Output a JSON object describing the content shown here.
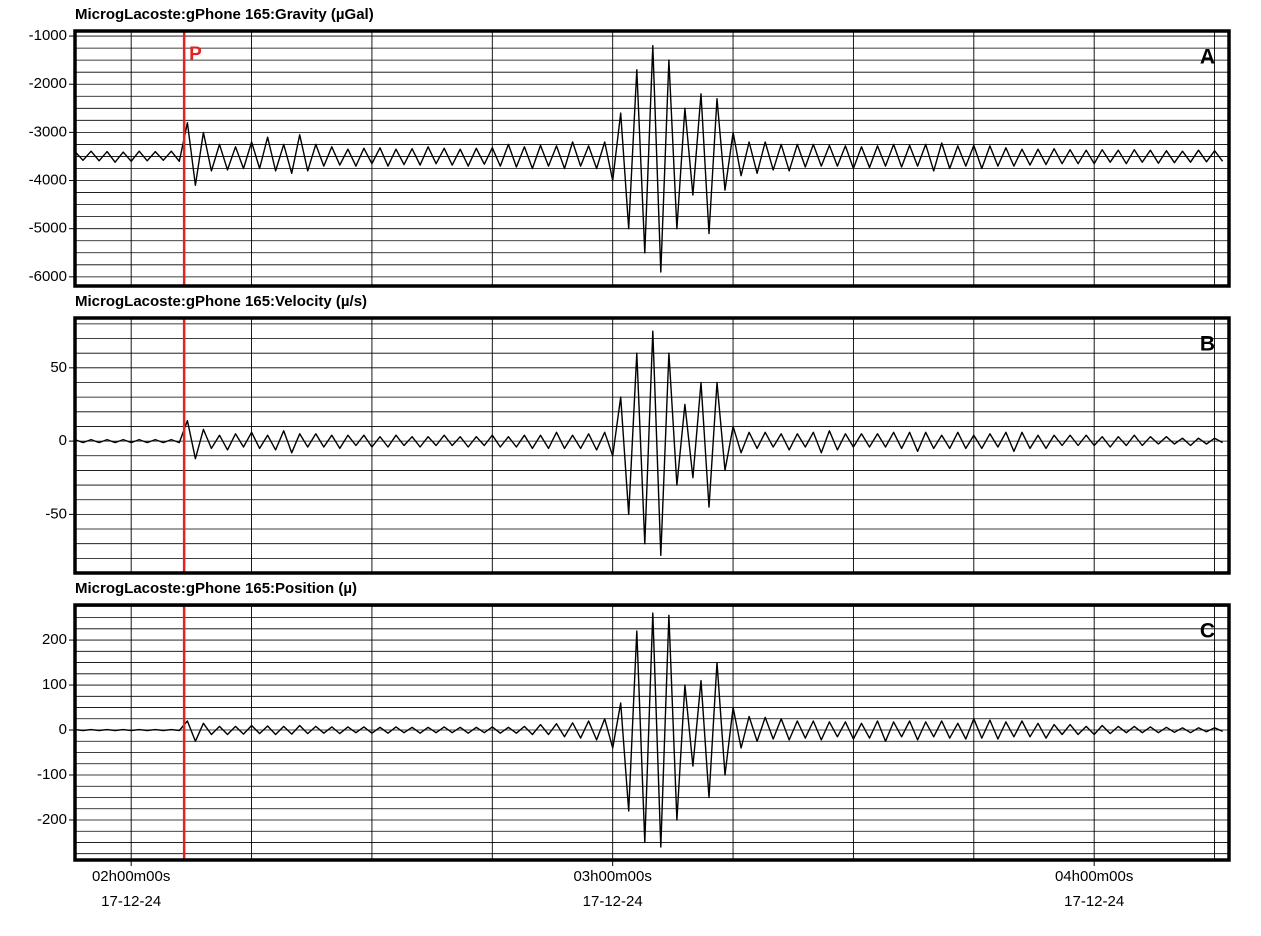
{
  "chart_data": [
    {
      "type": "line",
      "title": "MicrogLacoste:gPhone 165:Gravity (µGal)",
      "panel_label": "A",
      "color": "#000000",
      "grid": true,
      "xlim": [
        -7,
        136.8
      ],
      "xgrid_step": 15,
      "ylim": [
        -6190,
        -895
      ],
      "yticks": [
        -1000,
        -2000,
        -3000,
        -4000,
        -5000,
        -6000
      ],
      "yminor_step": 250,
      "markers": [
        {
          "x": 6.6,
          "label": "P",
          "color": "#e32222"
        }
      ],
      "x": [
        -7,
        -6,
        -5,
        -4,
        -3,
        -2,
        -1,
        0,
        1,
        2,
        3,
        4,
        5,
        6,
        7,
        8,
        9,
        10,
        11,
        12,
        13,
        14,
        15,
        16,
        17,
        18,
        19,
        20,
        21,
        22,
        23,
        24,
        25,
        26,
        27,
        28,
        29,
        30,
        31,
        32,
        33,
        34,
        35,
        36,
        37,
        38,
        39,
        40,
        41,
        42,
        43,
        44,
        45,
        46,
        47,
        48,
        49,
        50,
        51,
        52,
        53,
        54,
        55,
        56,
        57,
        58,
        59,
        60,
        61,
        62,
        63,
        64,
        65,
        66,
        67,
        68,
        69,
        70,
        71,
        72,
        73,
        74,
        75,
        76,
        77,
        78,
        79,
        80,
        81,
        82,
        83,
        84,
        85,
        86,
        87,
        88,
        89,
        90,
        91,
        92,
        93,
        94,
        95,
        96,
        97,
        98,
        99,
        100,
        101,
        102,
        103,
        104,
        105,
        106,
        107,
        108,
        109,
        110,
        111,
        112,
        113,
        114,
        115,
        116,
        117,
        118,
        119,
        120,
        121,
        122,
        123,
        124,
        125,
        126,
        127,
        128,
        129,
        130,
        131,
        132,
        133,
        134,
        135,
        136
      ],
      "values": [
        -3400,
        -3580,
        -3390,
        -3590,
        -3400,
        -3620,
        -3410,
        -3600,
        -3390,
        -3590,
        -3400,
        -3580,
        -3390,
        -3600,
        -2800,
        -4100,
        -3000,
        -3800,
        -3250,
        -3780,
        -3300,
        -3750,
        -3200,
        -3750,
        -3100,
        -3800,
        -3250,
        -3850,
        -3050,
        -3800,
        -3250,
        -3700,
        -3300,
        -3680,
        -3350,
        -3700,
        -3330,
        -3650,
        -3320,
        -3700,
        -3350,
        -3670,
        -3340,
        -3680,
        -3300,
        -3650,
        -3330,
        -3680,
        -3350,
        -3700,
        -3330,
        -3660,
        -3320,
        -3700,
        -3250,
        -3720,
        -3300,
        -3750,
        -3270,
        -3700,
        -3280,
        -3750,
        -3200,
        -3700,
        -3280,
        -3750,
        -3200,
        -4000,
        -2600,
        -5000,
        -1700,
        -5500,
        -1200,
        -5900,
        -1500,
        -5000,
        -2500,
        -4300,
        -2200,
        -5100,
        -2300,
        -4200,
        -3000,
        -3900,
        -3200,
        -3850,
        -3200,
        -3780,
        -3250,
        -3800,
        -3250,
        -3720,
        -3250,
        -3700,
        -3270,
        -3700,
        -3280,
        -3750,
        -3300,
        -3730,
        -3280,
        -3700,
        -3250,
        -3720,
        -3270,
        -3700,
        -3250,
        -3800,
        -3220,
        -3750,
        -3280,
        -3700,
        -3270,
        -3750,
        -3280,
        -3700,
        -3320,
        -3700,
        -3350,
        -3680,
        -3350,
        -3670,
        -3340,
        -3650,
        -3360,
        -3650,
        -3370,
        -3650,
        -3360,
        -3620,
        -3370,
        -3650,
        -3360,
        -3620,
        -3370,
        -3640,
        -3380,
        -3630,
        -3390,
        -3620,
        -3370,
        -3610,
        -3380,
        -3600
      ]
    },
    {
      "type": "line",
      "title": "MicrogLacoste:gPhone 165:Velocity (µ/s)",
      "panel_label": "B",
      "color": "#000000",
      "grid": true,
      "xlim": [
        -7,
        136.8
      ],
      "xgrid_step": 15,
      "ylim": [
        -90,
        84
      ],
      "yticks": [
        50,
        0,
        -50
      ],
      "yminor_step": 10,
      "markers": [
        {
          "x": 6.6,
          "color": "#e32222"
        }
      ],
      "x": [
        -7,
        -6,
        -5,
        -4,
        -3,
        -2,
        -1,
        0,
        1,
        2,
        3,
        4,
        5,
        6,
        7,
        8,
        9,
        10,
        11,
        12,
        13,
        14,
        15,
        16,
        17,
        18,
        19,
        20,
        21,
        22,
        23,
        24,
        25,
        26,
        27,
        28,
        29,
        30,
        31,
        32,
        33,
        34,
        35,
        36,
        37,
        38,
        39,
        40,
        41,
        42,
        43,
        44,
        45,
        46,
        47,
        48,
        49,
        50,
        51,
        52,
        53,
        54,
        55,
        56,
        57,
        58,
        59,
        60,
        61,
        62,
        63,
        64,
        65,
        66,
        67,
        68,
        69,
        70,
        71,
        72,
        73,
        74,
        75,
        76,
        77,
        78,
        79,
        80,
        81,
        82,
        83,
        84,
        85,
        86,
        87,
        88,
        89,
        90,
        91,
        92,
        93,
        94,
        95,
        96,
        97,
        98,
        99,
        100,
        101,
        102,
        103,
        104,
        105,
        106,
        107,
        108,
        109,
        110,
        111,
        112,
        113,
        114,
        115,
        116,
        117,
        118,
        119,
        120,
        121,
        122,
        123,
        124,
        125,
        126,
        127,
        128,
        129,
        130,
        131,
        132,
        133,
        134,
        135,
        136
      ],
      "values": [
        1,
        -1,
        1,
        -1,
        1,
        -1,
        1,
        -1,
        1,
        -1,
        1,
        -1,
        1,
        -1,
        14,
        -12,
        8,
        -5,
        4,
        -6,
        5,
        -4,
        6,
        -5,
        4,
        -6,
        7,
        -8,
        5,
        -4,
        5,
        -4,
        4,
        -5,
        4,
        -3,
        4,
        -4,
        3,
        -4,
        4,
        -3,
        3,
        -4,
        3,
        -3,
        4,
        -3,
        3,
        -4,
        3,
        -3,
        4,
        -4,
        3,
        -4,
        4,
        -5,
        4,
        -5,
        6,
        -5,
        4,
        -5,
        5,
        -6,
        6,
        -10,
        30,
        -50,
        60,
        -70,
        75,
        -78,
        60,
        -30,
        25,
        -25,
        40,
        -45,
        40,
        -20,
        10,
        -8,
        6,
        -5,
        6,
        -4,
        5,
        -6,
        5,
        -4,
        6,
        -8,
        7,
        -6,
        5,
        -4,
        5,
        -4,
        5,
        -4,
        6,
        -5,
        6,
        -7,
        6,
        -5,
        4,
        -5,
        6,
        -5,
        4,
        -5,
        5,
        -4,
        6,
        -7,
        6,
        -5,
        4,
        -5,
        4,
        -3,
        4,
        -3,
        4,
        -3,
        3,
        -4,
        3,
        -3,
        4,
        -3,
        3,
        -2,
        3,
        -2,
        2,
        -3,
        2,
        -2,
        2,
        -1
      ]
    },
    {
      "type": "line",
      "title": "MicrogLacoste:gPhone 165:Position (µ)",
      "panel_label": "C",
      "color": "#000000",
      "grid": true,
      "xlim": [
        -7,
        136.8
      ],
      "xgrid_step": 15,
      "xticks": [
        {
          "value": 0,
          "label": "02h00m00s"
        },
        {
          "value": 60,
          "label": "03h00m00s"
        },
        {
          "value": 120,
          "label": "04h00m00s"
        }
      ],
      "xtick_dates": [
        "17-12-24",
        "17-12-24",
        "17-12-24"
      ],
      "ylim": [
        -289,
        278
      ],
      "yticks": [
        200,
        100,
        0,
        -100,
        -200
      ],
      "yminor_step": 25,
      "markers": [
        {
          "x": 6.6,
          "color": "#e32222"
        }
      ],
      "x": [
        -7,
        -6,
        -5,
        -4,
        -3,
        -2,
        -1,
        0,
        1,
        2,
        3,
        4,
        5,
        6,
        7,
        8,
        9,
        10,
        11,
        12,
        13,
        14,
        15,
        16,
        17,
        18,
        19,
        20,
        21,
        22,
        23,
        24,
        25,
        26,
        27,
        28,
        29,
        30,
        31,
        32,
        33,
        34,
        35,
        36,
        37,
        38,
        39,
        40,
        41,
        42,
        43,
        44,
        45,
        46,
        47,
        48,
        49,
        50,
        51,
        52,
        53,
        54,
        55,
        56,
        57,
        58,
        59,
        60,
        61,
        62,
        63,
        64,
        65,
        66,
        67,
        68,
        69,
        70,
        71,
        72,
        73,
        74,
        75,
        76,
        77,
        78,
        79,
        80,
        81,
        82,
        83,
        84,
        85,
        86,
        87,
        88,
        89,
        90,
        91,
        92,
        93,
        94,
        95,
        96,
        97,
        98,
        99,
        100,
        101,
        102,
        103,
        104,
        105,
        106,
        107,
        108,
        109,
        110,
        111,
        112,
        113,
        114,
        115,
        116,
        117,
        118,
        119,
        120,
        121,
        122,
        123,
        124,
        125,
        126,
        127,
        128,
        129,
        130,
        131,
        132,
        133,
        134,
        135,
        136
      ],
      "values": [
        1,
        -1,
        1,
        -1,
        1,
        -1,
        1,
        -1,
        1,
        -1,
        1,
        -1,
        1,
        -1,
        20,
        -25,
        15,
        -10,
        8,
        -10,
        8,
        -9,
        10,
        -8,
        9,
        -10,
        8,
        -9,
        10,
        -8,
        8,
        -7,
        7,
        -8,
        7,
        -6,
        7,
        -7,
        6,
        -7,
        7,
        -6,
        6,
        -7,
        6,
        -6,
        7,
        -6,
        6,
        -7,
        6,
        -6,
        7,
        -7,
        6,
        -7,
        8,
        -10,
        12,
        -10,
        14,
        -15,
        16,
        -18,
        20,
        -22,
        25,
        -40,
        60,
        -180,
        220,
        -250,
        260,
        -260,
        255,
        -200,
        100,
        -80,
        110,
        -150,
        150,
        -100,
        50,
        -40,
        30,
        -25,
        28,
        -20,
        25,
        -22,
        20,
        -18,
        20,
        -22,
        18,
        -15,
        18,
        -20,
        15,
        -18,
        20,
        -25,
        18,
        -15,
        20,
        -22,
        18,
        -15,
        20,
        -18,
        15,
        -20,
        25,
        -18,
        22,
        -20,
        18,
        -15,
        20,
        -15,
        15,
        -18,
        12,
        -10,
        12,
        -10,
        8,
        -10,
        10,
        -8,
        8,
        -6,
        8,
        -6,
        7,
        -6,
        6,
        -5,
        5,
        -6,
        5,
        -4,
        5,
        -3
      ]
    }
  ]
}
